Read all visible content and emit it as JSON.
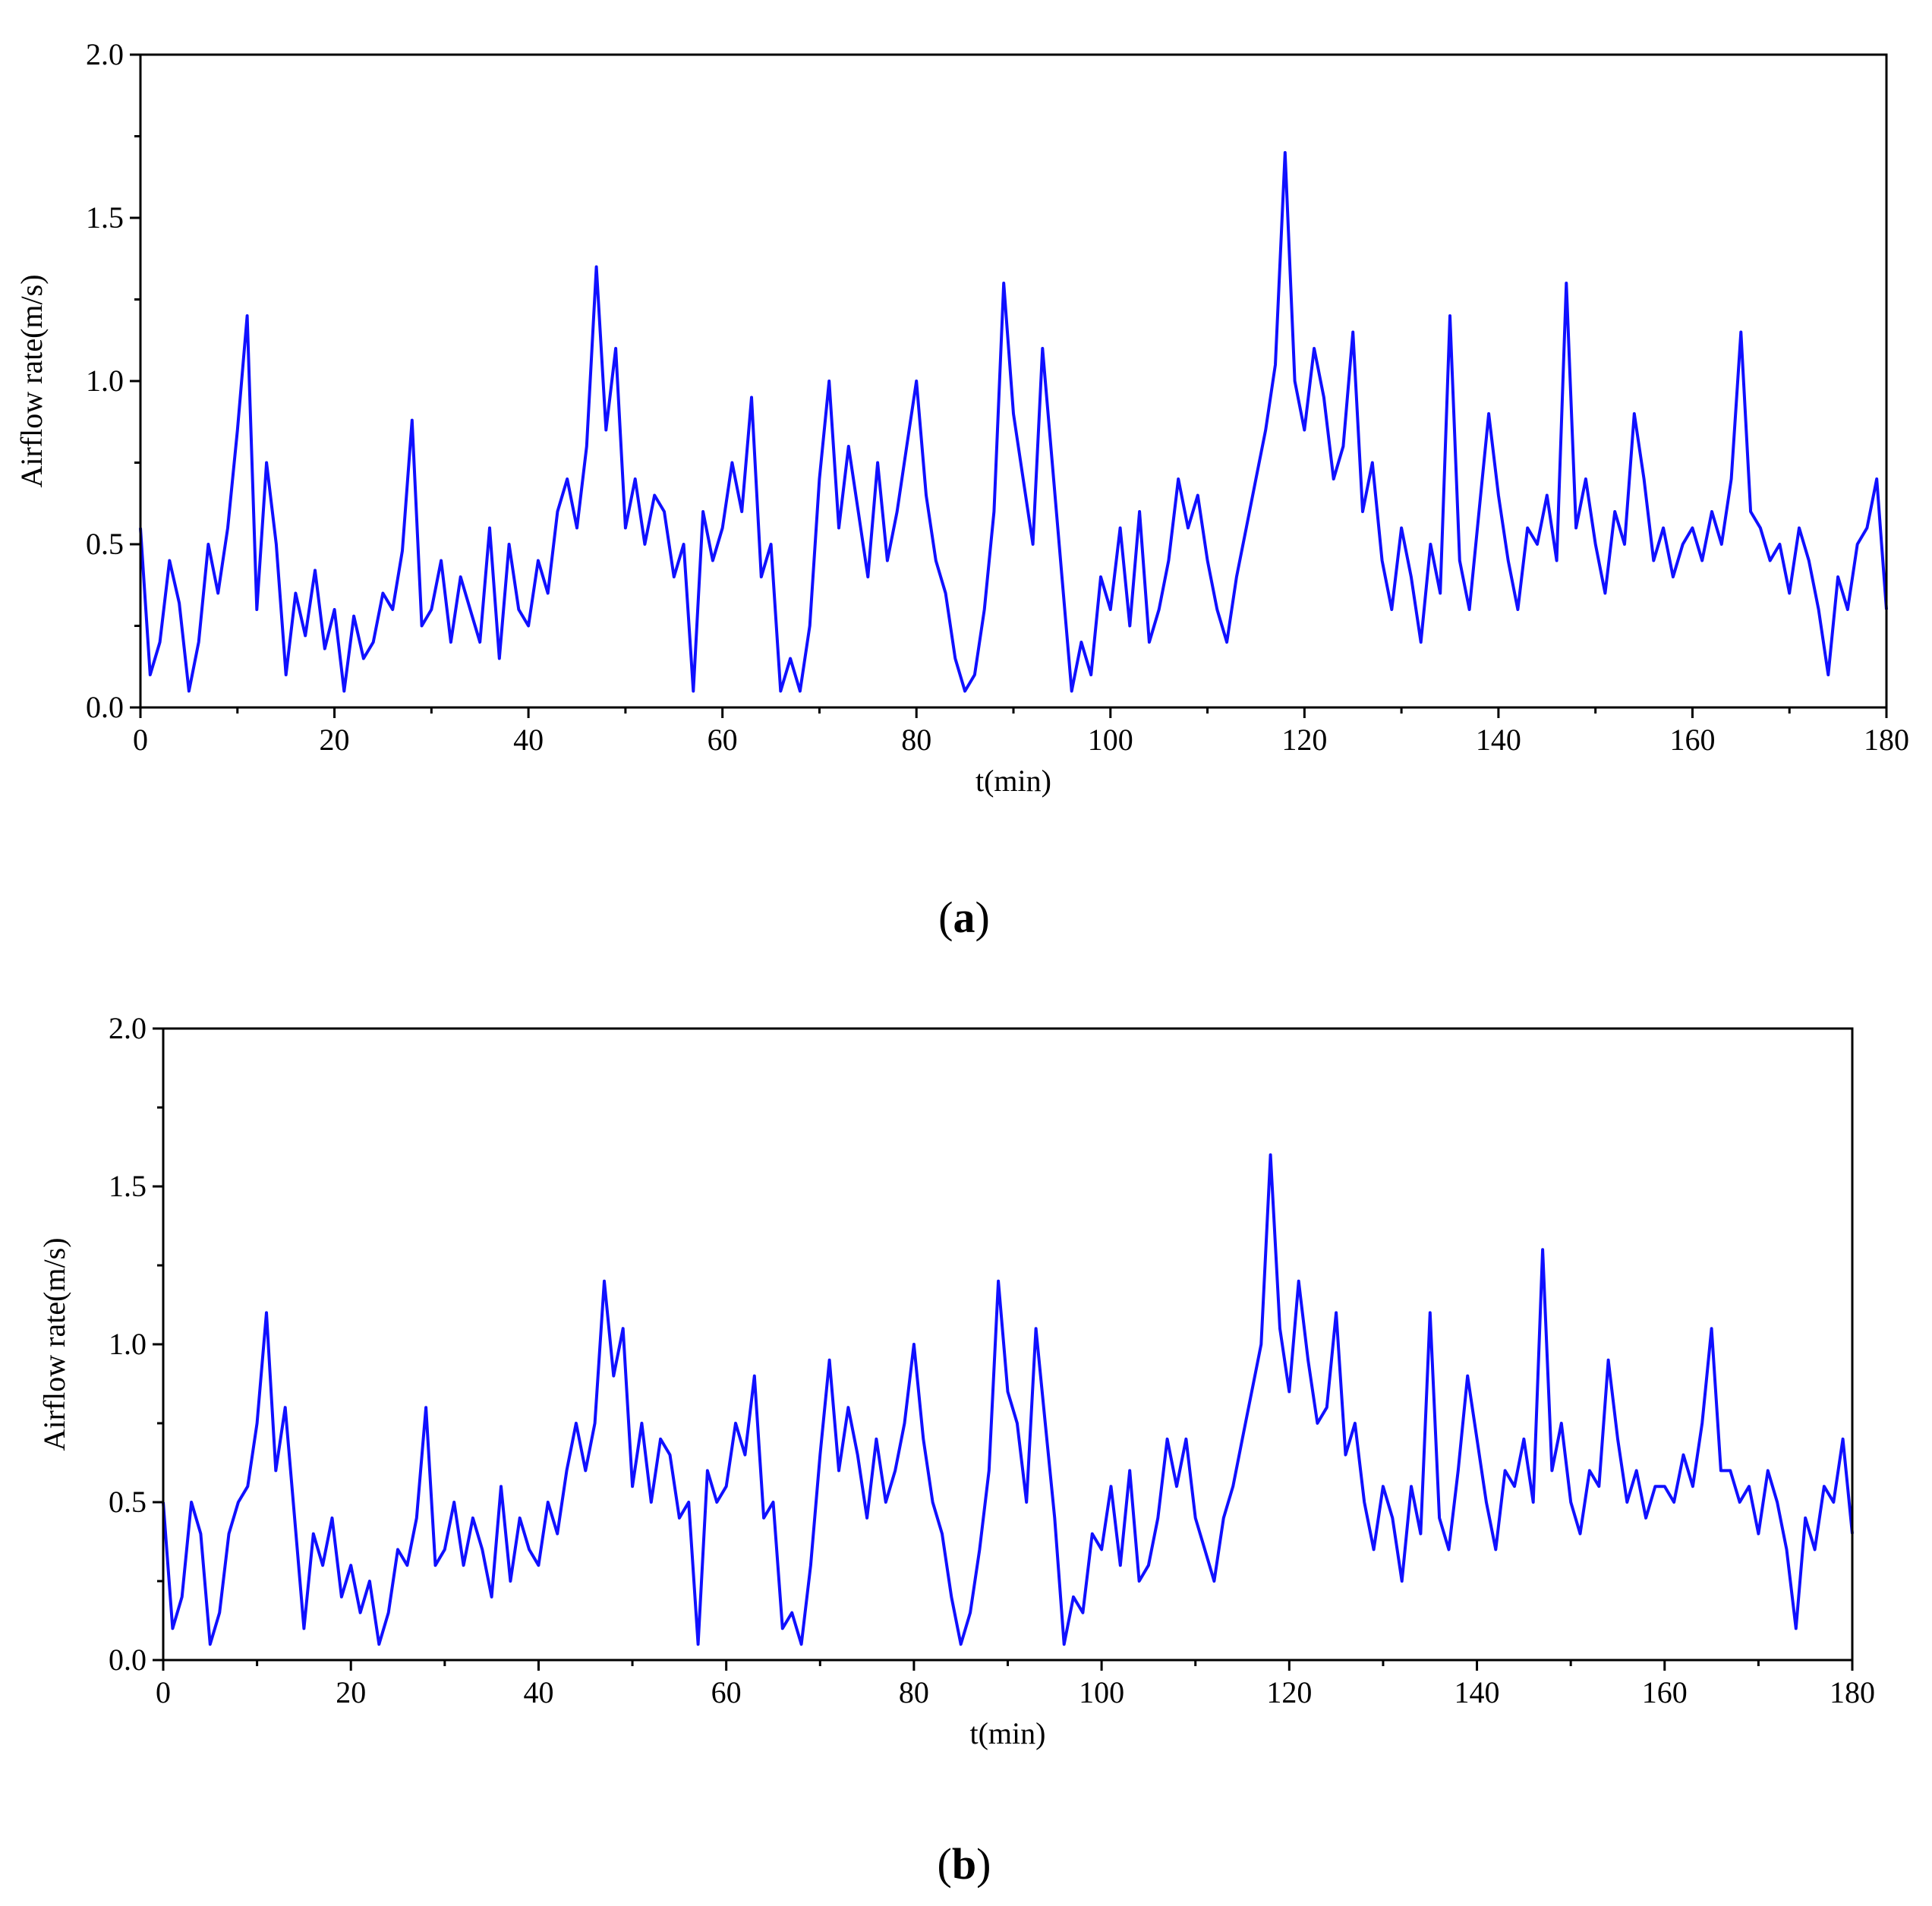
{
  "figure": {
    "panels": [
      {
        "label_open": "(",
        "label_letter": "a",
        "label_close": ")"
      },
      {
        "label_open": "(",
        "label_letter": "b",
        "label_close": ")"
      }
    ]
  },
  "colors": {
    "series": "#1010ff",
    "axis": "#000000",
    "background": "#ffffff"
  },
  "chart_data": [
    {
      "type": "line",
      "title": "",
      "xlabel": "t(min)",
      "ylabel": "Airflow rate(m/s)",
      "xlim": [
        0,
        180
      ],
      "ylim": [
        0,
        2.0
      ],
      "xticks": [
        0,
        20,
        40,
        60,
        80,
        100,
        120,
        140,
        160,
        180
      ],
      "yticks": [
        0.0,
        0.5,
        1.0,
        1.5,
        2.0
      ],
      "ytick_labels": [
        "0.0",
        "0.5",
        "1.0",
        "1.5",
        "2.0"
      ],
      "grid": false,
      "legend": "none",
      "series": [
        {
          "x": [
            0,
            1,
            2,
            3,
            4,
            5,
            6,
            7,
            8,
            9,
            10,
            11,
            12,
            13,
            14,
            15,
            16,
            17,
            18,
            19,
            20,
            21,
            22,
            23,
            24,
            25,
            26,
            27,
            28,
            29,
            30,
            31,
            32,
            33,
            34,
            35,
            36,
            37,
            38,
            39,
            40,
            41,
            42,
            43,
            44,
            45,
            46,
            47,
            48,
            49,
            50,
            51,
            52,
            53,
            54,
            55,
            56,
            57,
            58,
            59,
            60,
            61,
            62,
            63,
            64,
            65,
            66,
            67,
            68,
            69,
            70,
            71,
            72,
            73,
            74,
            75,
            76,
            77,
            78,
            79,
            80,
            81,
            82,
            83,
            84,
            85,
            86,
            87,
            88,
            89,
            90,
            91,
            92,
            93,
            94,
            95,
            96,
            97,
            98,
            99,
            100,
            101,
            102,
            103,
            104,
            105,
            106,
            107,
            108,
            109,
            110,
            111,
            112,
            113,
            114,
            115,
            116,
            117,
            118,
            119,
            120,
            121,
            122,
            123,
            124,
            125,
            126,
            127,
            128,
            129,
            130,
            131,
            132,
            133,
            134,
            135,
            136,
            137,
            138,
            139,
            140,
            141,
            142,
            143,
            144,
            145,
            146,
            147,
            148,
            149,
            150,
            151,
            152,
            153,
            154,
            155,
            156,
            157,
            158,
            159,
            160,
            161,
            162,
            163,
            164,
            165,
            166,
            167,
            168,
            169,
            170,
            171,
            172,
            173,
            174,
            175,
            176,
            177,
            178,
            179,
            180
          ],
          "y": [
            0.55,
            0.1,
            0.2,
            0.45,
            0.32,
            0.05,
            0.2,
            0.5,
            0.35,
            0.55,
            0.85,
            1.2,
            0.3,
            0.75,
            0.5,
            0.1,
            0.35,
            0.22,
            0.42,
            0.18,
            0.3,
            0.05,
            0.28,
            0.15,
            0.2,
            0.35,
            0.3,
            0.48,
            0.88,
            0.25,
            0.3,
            0.45,
            0.2,
            0.4,
            0.3,
            0.2,
            0.55,
            0.15,
            0.5,
            0.3,
            0.25,
            0.45,
            0.35,
            0.6,
            0.7,
            0.55,
            0.8,
            1.35,
            0.85,
            1.1,
            0.55,
            0.7,
            0.5,
            0.65,
            0.6,
            0.4,
            0.5,
            0.05,
            0.6,
            0.45,
            0.55,
            0.75,
            0.6,
            0.95,
            0.4,
            0.5,
            0.05,
            0.15,
            0.05,
            0.25,
            0.7,
            1.0,
            0.55,
            0.8,
            0.6,
            0.4,
            0.75,
            0.45,
            0.6,
            0.8,
            1.0,
            0.65,
            0.45,
            0.35,
            0.15,
            0.05,
            0.1,
            0.3,
            0.6,
            1.3,
            0.9,
            0.7,
            0.5,
            1.1,
            0.75,
            0.4,
            0.05,
            0.2,
            0.1,
            0.4,
            0.3,
            0.55,
            0.25,
            0.6,
            0.2,
            0.3,
            0.45,
            0.7,
            0.55,
            0.65,
            0.45,
            0.3,
            0.2,
            0.4,
            0.55,
            0.7,
            0.85,
            1.05,
            1.7,
            1.0,
            0.85,
            1.1,
            0.95,
            0.7,
            0.8,
            1.15,
            0.6,
            0.75,
            0.45,
            0.3,
            0.55,
            0.4,
            0.2,
            0.5,
            0.35,
            1.2,
            0.45,
            0.3,
            0.6,
            0.9,
            0.65,
            0.45,
            0.3,
            0.55,
            0.5,
            0.65,
            0.45,
            1.3,
            0.55,
            0.7,
            0.5,
            0.35,
            0.6,
            0.5,
            0.9,
            0.7,
            0.45,
            0.55,
            0.4,
            0.5,
            0.55,
            0.45,
            0.6,
            0.5,
            0.7,
            1.15,
            0.6,
            0.55,
            0.45,
            0.5,
            0.35,
            0.55,
            0.45,
            0.3,
            0.1,
            0.4,
            0.3,
            0.5,
            0.55,
            0.7,
            0.3
          ]
        }
      ]
    },
    {
      "type": "line",
      "title": "",
      "xlabel": "t(min)",
      "ylabel": "Airflow rate(m/s)",
      "xlim": [
        0,
        180
      ],
      "ylim": [
        0,
        2.0
      ],
      "xticks": [
        0,
        20,
        40,
        60,
        80,
        100,
        120,
        140,
        160,
        180
      ],
      "yticks": [
        0.0,
        0.5,
        1.0,
        1.5,
        2.0
      ],
      "ytick_labels": [
        "0.0",
        "0.5",
        "1.0",
        "1.5",
        "2.0"
      ],
      "grid": false,
      "legend": "none",
      "series": [
        {
          "x": [
            0,
            1,
            2,
            3,
            4,
            5,
            6,
            7,
            8,
            9,
            10,
            11,
            12,
            13,
            14,
            15,
            16,
            17,
            18,
            19,
            20,
            21,
            22,
            23,
            24,
            25,
            26,
            27,
            28,
            29,
            30,
            31,
            32,
            33,
            34,
            35,
            36,
            37,
            38,
            39,
            40,
            41,
            42,
            43,
            44,
            45,
            46,
            47,
            48,
            49,
            50,
            51,
            52,
            53,
            54,
            55,
            56,
            57,
            58,
            59,
            60,
            61,
            62,
            63,
            64,
            65,
            66,
            67,
            68,
            69,
            70,
            71,
            72,
            73,
            74,
            75,
            76,
            77,
            78,
            79,
            80,
            81,
            82,
            83,
            84,
            85,
            86,
            87,
            88,
            89,
            90,
            91,
            92,
            93,
            94,
            95,
            96,
            97,
            98,
            99,
            100,
            101,
            102,
            103,
            104,
            105,
            106,
            107,
            108,
            109,
            110,
            111,
            112,
            113,
            114,
            115,
            116,
            117,
            118,
            119,
            120,
            121,
            122,
            123,
            124,
            125,
            126,
            127,
            128,
            129,
            130,
            131,
            132,
            133,
            134,
            135,
            136,
            137,
            138,
            139,
            140,
            141,
            142,
            143,
            144,
            145,
            146,
            147,
            148,
            149,
            150,
            151,
            152,
            153,
            154,
            155,
            156,
            157,
            158,
            159,
            160,
            161,
            162,
            163,
            164,
            165,
            166,
            167,
            168,
            169,
            170,
            171,
            172,
            173,
            174,
            175,
            176,
            177,
            178,
            179,
            180
          ],
          "y": [
            0.5,
            0.1,
            0.2,
            0.5,
            0.4,
            0.05,
            0.15,
            0.4,
            0.5,
            0.55,
            0.75,
            1.1,
            0.6,
            0.8,
            0.45,
            0.1,
            0.4,
            0.3,
            0.45,
            0.2,
            0.3,
            0.15,
            0.25,
            0.05,
            0.15,
            0.35,
            0.3,
            0.45,
            0.8,
            0.3,
            0.35,
            0.5,
            0.3,
            0.45,
            0.35,
            0.2,
            0.55,
            0.25,
            0.45,
            0.35,
            0.3,
            0.5,
            0.4,
            0.6,
            0.75,
            0.6,
            0.75,
            1.2,
            0.9,
            1.05,
            0.55,
            0.75,
            0.5,
            0.7,
            0.65,
            0.45,
            0.5,
            0.05,
            0.6,
            0.5,
            0.55,
            0.75,
            0.65,
            0.9,
            0.45,
            0.5,
            0.1,
            0.15,
            0.05,
            0.3,
            0.65,
            0.95,
            0.6,
            0.8,
            0.65,
            0.45,
            0.7,
            0.5,
            0.6,
            0.75,
            1.0,
            0.7,
            0.5,
            0.4,
            0.2,
            0.05,
            0.15,
            0.35,
            0.6,
            1.2,
            0.85,
            0.75,
            0.5,
            1.05,
            0.75,
            0.45,
            0.05,
            0.2,
            0.15,
            0.4,
            0.35,
            0.55,
            0.3,
            0.6,
            0.25,
            0.3,
            0.45,
            0.7,
            0.55,
            0.7,
            0.45,
            0.35,
            0.25,
            0.45,
            0.55,
            0.7,
            0.85,
            1.0,
            1.6,
            1.05,
            0.85,
            1.2,
            0.95,
            0.75,
            0.8,
            1.1,
            0.65,
            0.75,
            0.5,
            0.35,
            0.55,
            0.45,
            0.25,
            0.55,
            0.4,
            1.1,
            0.45,
            0.35,
            0.6,
            0.9,
            0.7,
            0.5,
            0.35,
            0.6,
            0.55,
            0.7,
            0.5,
            1.3,
            0.6,
            0.75,
            0.5,
            0.4,
            0.6,
            0.55,
            0.95,
            0.7,
            0.5,
            0.6,
            0.45,
            0.55,
            0.55,
            0.5,
            0.65,
            0.55,
            0.75,
            1.05,
            0.6,
            0.6,
            0.5,
            0.55,
            0.4,
            0.6,
            0.5,
            0.35,
            0.1,
            0.45,
            0.35,
            0.55,
            0.5,
            0.7,
            0.4
          ]
        }
      ]
    }
  ]
}
